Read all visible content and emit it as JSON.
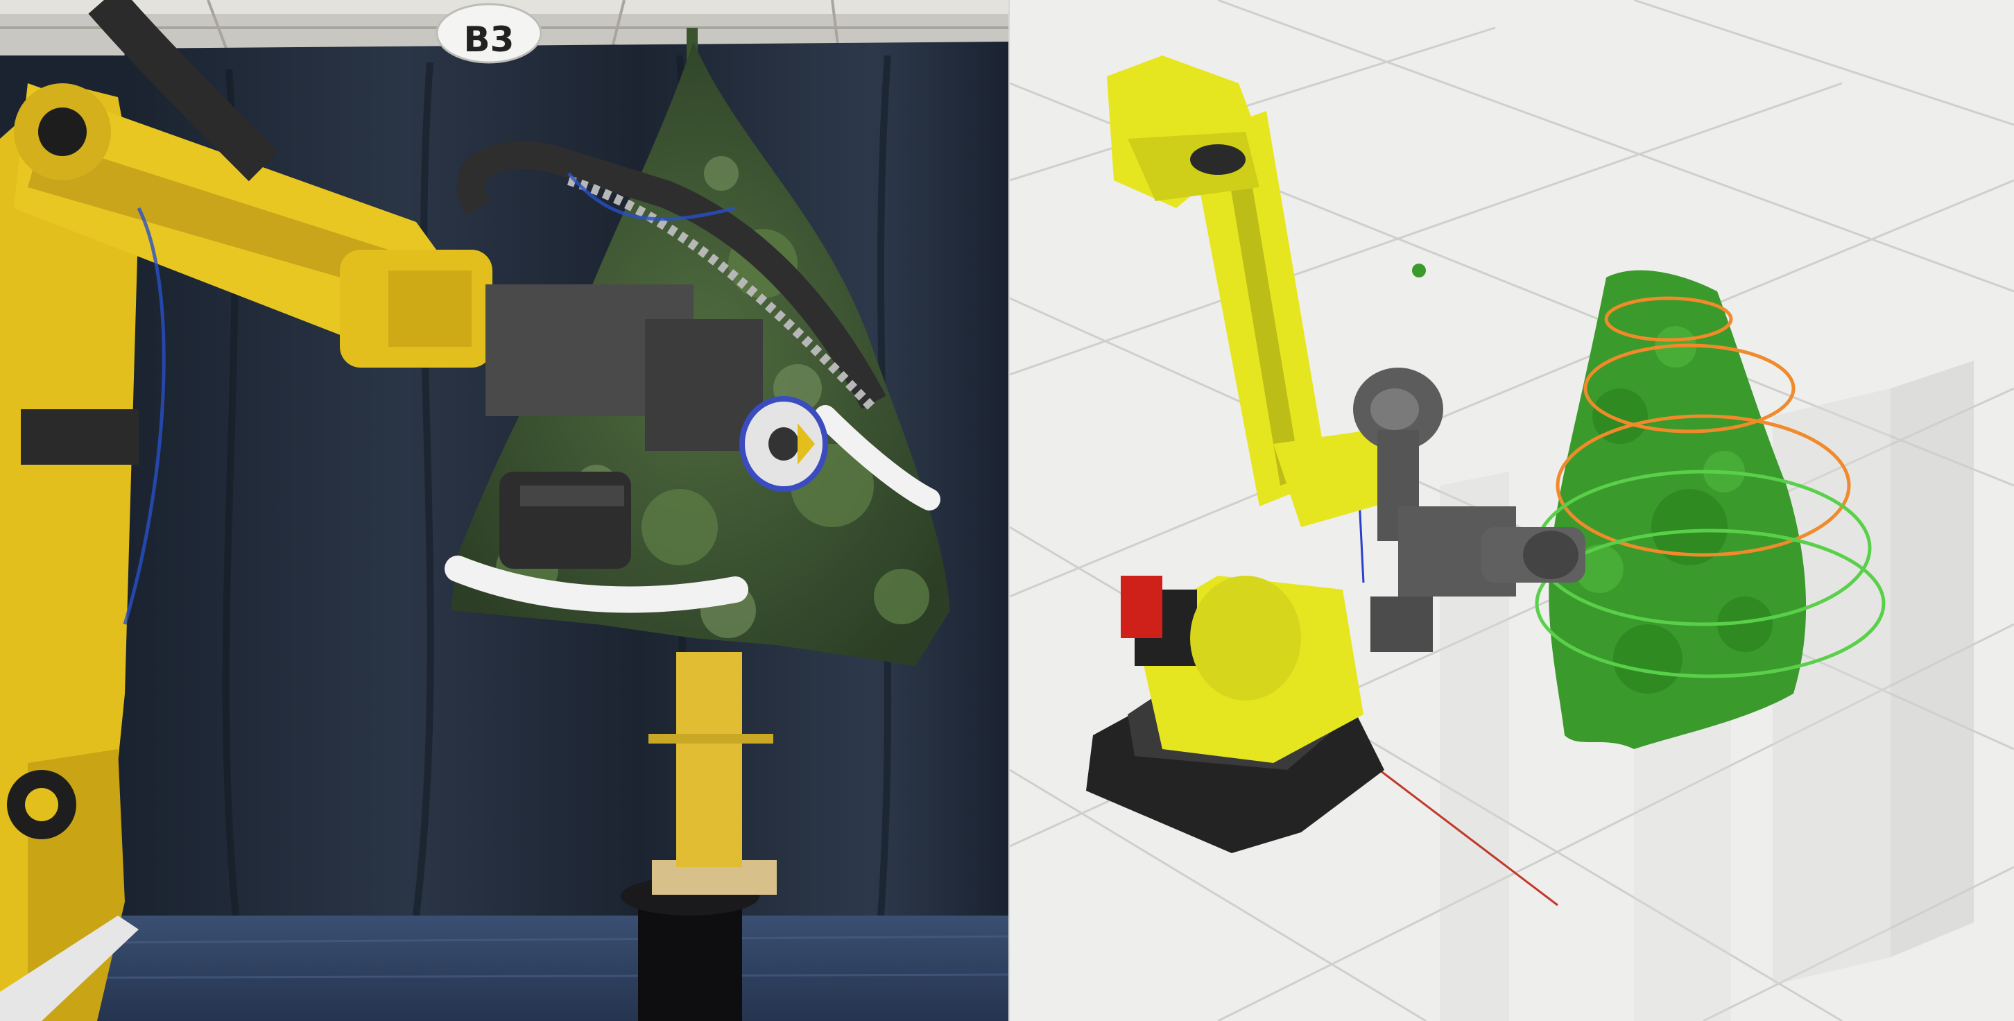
{
  "scene": {
    "left_view": "camera",
    "right_view": "3d-visualization"
  },
  "booth_sign": {
    "label": "B3"
  },
  "colors": {
    "robot_yellow": "#e8c41c",
    "backdrop_cloth": "#1f2937",
    "tree_green": "#3a9a2c",
    "spiral_orange": "#f08a2a",
    "spiral_green": "#5ad04a",
    "grid_background": "#eeeeec"
  }
}
